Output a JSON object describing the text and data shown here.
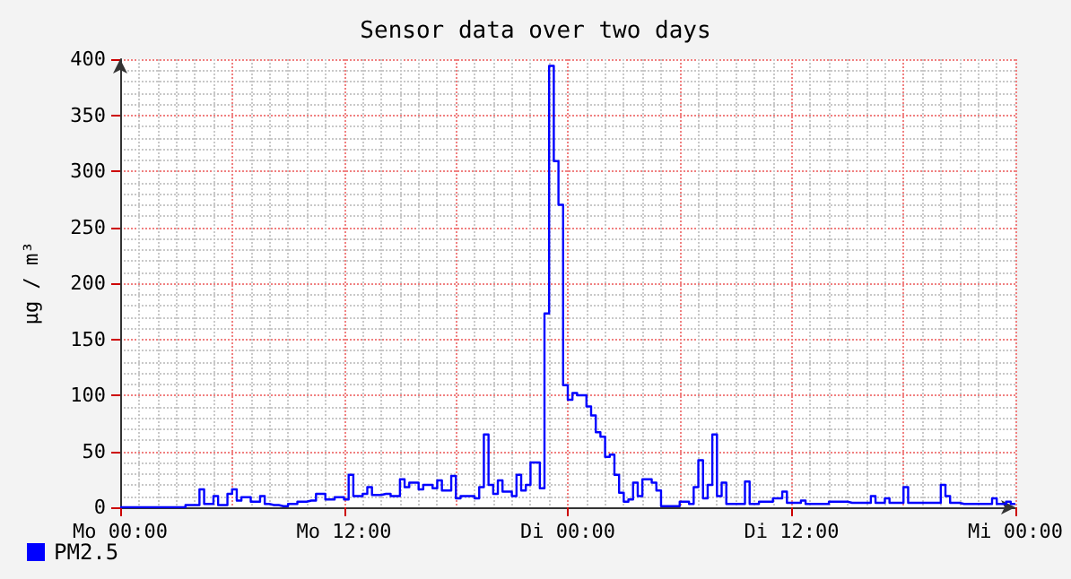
{
  "chart_data": {
    "type": "step",
    "title": "Sensor data over two days",
    "ylabel": "µg / m³",
    "categories": [
      "Mo 00:00",
      null,
      null,
      null,
      null,
      null,
      null,
      null,
      null,
      null,
      null,
      null,
      null,
      null,
      null,
      null,
      null,
      null,
      null,
      null,
      null,
      null,
      null,
      null,
      null,
      null,
      null,
      null,
      null,
      null,
      null,
      null,
      null,
      null,
      null,
      null,
      null,
      null,
      null,
      null,
      null,
      null,
      null,
      null,
      null,
      null,
      null,
      null,
      "Mo 12:00",
      null,
      null,
      null,
      null,
      null,
      null,
      null,
      null,
      null,
      null,
      null,
      null,
      null,
      null,
      null,
      null,
      null,
      null,
      null,
      null,
      null,
      null,
      null,
      null,
      null,
      null,
      null,
      null,
      null,
      null,
      null,
      null,
      null,
      null,
      null,
      null,
      null,
      null,
      null,
      null,
      null,
      null,
      null,
      null,
      null,
      null,
      null,
      "Di 00:00",
      null,
      null,
      null,
      null,
      null,
      null,
      null,
      null,
      null,
      null,
      null,
      null,
      null,
      null,
      null,
      null,
      null,
      null,
      null,
      null,
      null,
      null,
      null,
      null,
      null,
      null,
      null,
      null,
      null,
      null,
      null,
      null,
      null,
      null,
      null,
      null,
      null,
      null,
      null,
      null,
      null,
      null,
      null,
      null,
      null,
      null,
      null,
      "Di 12:00",
      null,
      null,
      null,
      null,
      null,
      null,
      null,
      null,
      null,
      null,
      null,
      null,
      null,
      null,
      null,
      null,
      null,
      null,
      null,
      null,
      null,
      null,
      null,
      null,
      null,
      null,
      null,
      null,
      null,
      null,
      null,
      null,
      null,
      null,
      null,
      null,
      null,
      null,
      null,
      null,
      null,
      null,
      null,
      null,
      null,
      null,
      null,
      "Mi 00:00"
    ],
    "ylim": [
      0,
      400
    ],
    "yticks": [
      0,
      50,
      100,
      150,
      200,
      250,
      300,
      350,
      400
    ],
    "grid": true,
    "legend": "bottom left",
    "series": [
      {
        "name": "PM2.5",
        "color": "#0000ff",
        "values": [
          0,
          0,
          0,
          0,
          0,
          0,
          0,
          0,
          0,
          0,
          0,
          0,
          0,
          0,
          2,
          2,
          2,
          16,
          3,
          3,
          10,
          2,
          2,
          12,
          16,
          6,
          9,
          9,
          5,
          5,
          10,
          3,
          2,
          2,
          1,
          1,
          3,
          3,
          5,
          5,
          6,
          6,
          12,
          12,
          7,
          7,
          9,
          9,
          7,
          29,
          10,
          10,
          12,
          18,
          11,
          11,
          12,
          12,
          10,
          10,
          25,
          18,
          22,
          22,
          16,
          20,
          20,
          17,
          24,
          15,
          15,
          28,
          8,
          10,
          10,
          10,
          8,
          18,
          65,
          20,
          12,
          24,
          14,
          14,
          10,
          29,
          15,
          20,
          40,
          40,
          17,
          173,
          394,
          309,
          270,
          109,
          96,
          102,
          100,
          100,
          90,
          82,
          67,
          63,
          45,
          47,
          29,
          13,
          5,
          7,
          22,
          10,
          25,
          25,
          22,
          15,
          1,
          1,
          1,
          1,
          5,
          5,
          3,
          18,
          42,
          8,
          20,
          65,
          10,
          22,
          3,
          3,
          3,
          3,
          23,
          3,
          3,
          5,
          5,
          5,
          8,
          8,
          14,
          4,
          4,
          4,
          6,
          3,
          3,
          3,
          3,
          3,
          5,
          5,
          5,
          5,
          4,
          4,
          4,
          4,
          4,
          10,
          4,
          4,
          8,
          4,
          4,
          4,
          18,
          4,
          4,
          4,
          4,
          4,
          4,
          4,
          20,
          10,
          4,
          4,
          3,
          3,
          3,
          3,
          3,
          3,
          3,
          8,
          3,
          3,
          5,
          3,
          3
        ]
      }
    ]
  }
}
